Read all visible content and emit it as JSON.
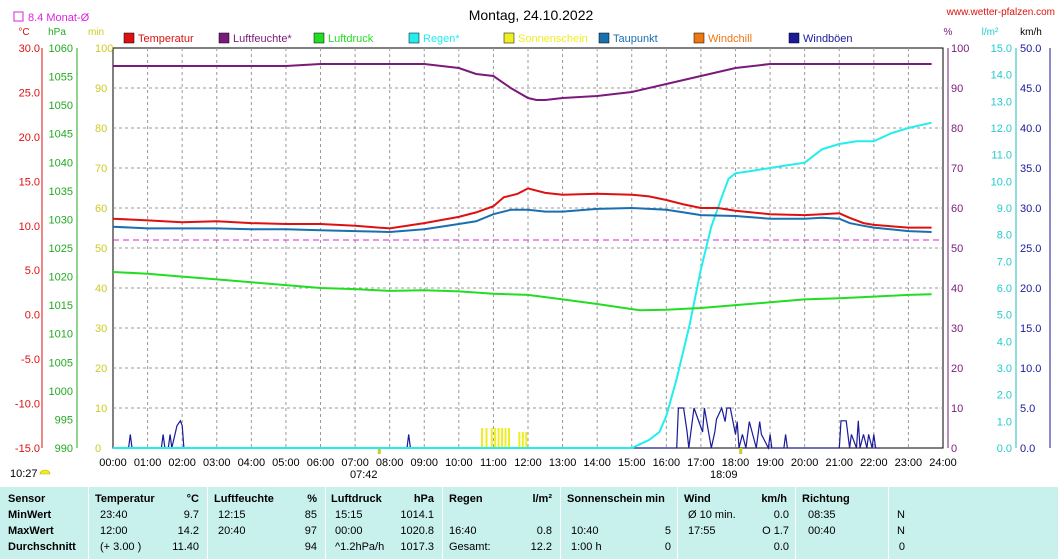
{
  "page": {
    "title": "Montag, 24.10.2022",
    "site": "www.wetter-pfalzen.com",
    "month_avg_label": "8.4 Monat-Ø",
    "time_start": "10:27",
    "time_sunrise": "07:42",
    "time_sunset": "18:09"
  },
  "colors": {
    "temperature": "#dd1111",
    "humidity": "#7a1a7a",
    "pressure": "#22dd22",
    "rain": "#22eeee",
    "sunshine": "#eeee22",
    "dewpoint": "#1a6fb0",
    "windchill": "#ee7711",
    "gusts": "#1a1a9a",
    "month_avg": "#dd22dd"
  },
  "chart_data": {
    "type": "line",
    "title": "Montag, 24.10.2022",
    "x_unit": "hours",
    "x_ticks": [
      "00:00",
      "01:00",
      "02:00",
      "03:00",
      "04:00",
      "05:00",
      "06:00",
      "07:00",
      "08:00",
      "09:00",
      "10:00",
      "11:00",
      "12:00",
      "13:00",
      "14:00",
      "15:00",
      "16:00",
      "17:00",
      "18:00",
      "19:00",
      "20:00",
      "21:00",
      "22:00",
      "23:00",
      "24:00"
    ],
    "axes": {
      "temperature": {
        "unit": "°C",
        "range": [
          -15,
          30
        ],
        "ticks": [
          "30.0",
          "25.0",
          "20.0",
          "15.0",
          "10.0",
          "5.0",
          "0.0",
          "-5.0",
          "-10.0",
          "-15.0"
        ]
      },
      "pressure": {
        "unit": "hPa",
        "range": [
          990,
          1060
        ],
        "ticks": [
          "1060",
          "1055",
          "1050",
          "1045",
          "1040",
          "1035",
          "1030",
          "1025",
          "1020",
          "1015",
          "1010",
          "1005",
          "1000",
          "995",
          "990"
        ]
      },
      "sunshine": {
        "unit": "min",
        "range": [
          0,
          100
        ],
        "ticks": [
          "100",
          "90",
          "80",
          "70",
          "60",
          "50",
          "40",
          "30",
          "20",
          "10",
          "0"
        ]
      },
      "humidity": {
        "unit": "%",
        "range": [
          0,
          100
        ],
        "ticks": [
          "100",
          "90",
          "80",
          "70",
          "60",
          "50",
          "40",
          "30",
          "20",
          "10",
          "0"
        ]
      },
      "rain": {
        "unit": "l/m²",
        "range": [
          0,
          15
        ],
        "ticks": [
          "15.0",
          "14.0",
          "13.0",
          "12.0",
          "11.0",
          "10.0",
          "9.0",
          "8.0",
          "7.0",
          "6.0",
          "5.0",
          "4.0",
          "3.0",
          "2.0",
          "1.0",
          "0.0"
        ]
      },
      "wind": {
        "unit": "km/h",
        "range": [
          0,
          50
        ],
        "ticks": [
          "50.0",
          "45.0",
          "40.0",
          "35.0",
          "30.0",
          "25.0",
          "20.0",
          "15.0",
          "10.0",
          "5.0",
          "0.0"
        ]
      }
    },
    "legend": [
      "Temperatur",
      "Luftfeuchte*",
      "Luftdruck",
      "Regen*",
      "Sonnenschein",
      "Taupunkt",
      "Windchill",
      "Windböen"
    ],
    "month_avg_temperature": 8.4,
    "series": [
      {
        "name": "Temperatur",
        "axis": "temperature",
        "x": [
          0,
          1,
          2,
          3,
          4,
          5,
          6,
          7,
          8,
          9,
          10,
          10.5,
          11,
          11.3,
          11.7,
          12,
          12.5,
          13,
          14,
          15,
          15.5,
          16,
          16.5,
          17,
          17.5,
          18,
          19,
          20,
          20.5,
          21,
          21.3,
          21.7,
          22,
          23,
          23.67
        ],
        "y": [
          10.8,
          10.6,
          10.4,
          10.5,
          10.3,
          10.2,
          10.2,
          10.0,
          9.7,
          10.3,
          11.0,
          11.5,
          12.2,
          13.2,
          13.6,
          14.2,
          13.7,
          13.5,
          13.6,
          13.5,
          13.3,
          12.9,
          12.4,
          12.0,
          12.0,
          11.7,
          11.3,
          11.2,
          11.3,
          11.4,
          10.9,
          10.3,
          10.1,
          9.8,
          9.8
        ]
      },
      {
        "name": "Luftfeuchte*",
        "axis": "humidity",
        "x": [
          0,
          1,
          2,
          3,
          4,
          5,
          6,
          7,
          8,
          9,
          10,
          10.5,
          11,
          11.5,
          12,
          12.25,
          12.5,
          13,
          14,
          15,
          16,
          17,
          18,
          19,
          20,
          21,
          22,
          23,
          23.67
        ],
        "y": [
          95.5,
          95.5,
          95.5,
          95.5,
          95.5,
          95.5,
          96,
          96,
          96,
          96,
          95,
          93.5,
          93,
          90,
          87.5,
          87,
          87,
          87.5,
          88,
          89,
          91,
          93,
          95,
          96,
          96,
          96,
          96,
          96,
          96
        ]
      },
      {
        "name": "Luftdruck",
        "axis": "pressure",
        "x": [
          0,
          1,
          2,
          3,
          4,
          5,
          6,
          7,
          8,
          9,
          10,
          11,
          12,
          13,
          14,
          15,
          15.25,
          16,
          17,
          18,
          19,
          20,
          21,
          22,
          23,
          23.67
        ],
        "y": [
          1020.8,
          1020.5,
          1020,
          1019.5,
          1019,
          1018.5,
          1018,
          1017.8,
          1017.5,
          1017.6,
          1017.4,
          1017,
          1016.8,
          1016,
          1015.2,
          1014.3,
          1014.1,
          1014.2,
          1014.5,
          1015,
          1015.5,
          1016,
          1016.2,
          1016.5,
          1016.8,
          1016.9
        ]
      },
      {
        "name": "Regen*",
        "axis": "rain",
        "x": [
          0,
          15,
          15.5,
          15.8,
          16,
          16.3,
          16.67,
          17,
          17.3,
          17.6,
          17.8,
          18,
          18.5,
          19,
          19.5,
          20,
          20.5,
          21,
          21.5,
          22,
          22.5,
          23,
          23.67
        ],
        "y": [
          0,
          0,
          0.3,
          0.6,
          1.2,
          2.6,
          4.6,
          6.7,
          8.3,
          9.4,
          10.1,
          10.3,
          10.4,
          10.5,
          10.6,
          10.7,
          11.2,
          11.4,
          11.5,
          11.5,
          11.8,
          12.0,
          12.2
        ]
      },
      {
        "name": "Taupunkt",
        "axis": "temperature",
        "x": [
          0,
          1,
          2,
          3,
          4,
          5,
          6,
          7,
          8,
          9,
          10,
          10.5,
          11,
          11.5,
          12,
          12.5,
          13,
          14,
          15,
          15.5,
          16,
          16.5,
          17,
          18,
          19,
          20,
          20.5,
          21,
          21.3,
          21.7,
          22,
          23,
          23.67
        ],
        "y": [
          9.9,
          9.7,
          9.7,
          9.7,
          9.6,
          9.6,
          9.5,
          9.4,
          9.3,
          9.6,
          10.2,
          10.5,
          11.3,
          11.8,
          11.8,
          11.6,
          11.6,
          11.9,
          12.0,
          11.9,
          11.8,
          11.5,
          11.2,
          11.1,
          10.8,
          10.8,
          10.9,
          10.8,
          10.3,
          10.0,
          9.8,
          9.4,
          9.3
        ]
      }
    ],
    "sunshine_bars": [
      {
        "x": 10.67,
        "y": 5
      },
      {
        "x": 10.8,
        "y": 5
      },
      {
        "x": 10.95,
        "y": 5
      },
      {
        "x": 11.05,
        "y": 5
      },
      {
        "x": 11.15,
        "y": 5
      },
      {
        "x": 11.25,
        "y": 5
      },
      {
        "x": 11.35,
        "y": 5
      },
      {
        "x": 11.45,
        "y": 5
      },
      {
        "x": 11.75,
        "y": 4
      },
      {
        "x": 11.85,
        "y": 4
      },
      {
        "x": 11.95,
        "y": 4
      }
    ],
    "gusts": {
      "x": [
        0,
        0.45,
        0.5,
        0.55,
        1.4,
        1.45,
        1.5,
        1.6,
        1.65,
        1.7,
        1.85,
        1.95,
        2.0,
        2.05,
        8.5,
        8.55,
        8.6,
        16.3,
        16.35,
        16.5,
        16.6,
        16.65,
        16.8,
        17.05,
        17.1,
        17.3,
        17.4,
        17.45,
        17.6,
        17.7,
        17.75,
        17.85,
        18.0,
        18.05,
        18.1,
        18.2,
        18.3,
        18.4,
        18.6,
        18.7,
        18.75,
        18.95,
        19.0,
        19.05,
        19.4,
        19.45,
        19.5,
        21.0,
        21.05,
        21.2,
        21.3,
        21.35,
        21.5,
        21.55,
        21.6,
        21.7,
        21.8,
        21.85,
        21.95,
        22.0,
        22.05,
        22.2
      ],
      "y": [
        0,
        0,
        1.7,
        0,
        0,
        1.7,
        0,
        0,
        1.7,
        0,
        2.8,
        3.4,
        2.8,
        0,
        0,
        1.7,
        0,
        0,
        5.0,
        5.0,
        2.0,
        0,
        5.0,
        2.0,
        5.0,
        0,
        2.0,
        3.6,
        5.0,
        3.3,
        5.0,
        5.0,
        1.7,
        3.3,
        0,
        1.7,
        0,
        3.3,
        0,
        3.3,
        1.7,
        0,
        1.7,
        0,
        0,
        1.7,
        0,
        0,
        3.4,
        3.4,
        0,
        1.7,
        0,
        3.4,
        0,
        1.7,
        0,
        1.7,
        0,
        1.7,
        0,
        0
      ]
    }
  },
  "stats": {
    "headers": {
      "sensor": "Sensor",
      "temp": "Temperatur",
      "temp_unit": "°C",
      "hum": "Luftfeuchte",
      "hum_unit": "%",
      "press": "Luftdruck",
      "press_unit": "hPa",
      "rain": "Regen",
      "rain_unit": "l/m²",
      "sun": "Sonnenschein min",
      "wind": "Wind",
      "wind_unit": "km/h",
      "dir": "Richtung"
    },
    "rows": [
      {
        "label": "MinWert",
        "temp_time": "23:40",
        "temp_val": "9.7",
        "hum_time": "12:15",
        "hum_val": "85",
        "press_time": "15:15",
        "press_val": "1014.1",
        "rain_time": "",
        "rain_val": "",
        "sun_time": "",
        "sun_val": "",
        "wind_time": "Ø 10 min.",
        "wind_val": "0.0",
        "dir_time": "08:35",
        "dir_val": "N"
      },
      {
        "label": "MaxWert",
        "temp_time": "12:00",
        "temp_val": "14.2",
        "hum_time": "20:40",
        "hum_val": "97",
        "press_time": "00:00",
        "press_val": "1020.8",
        "rain_time": "16:40",
        "rain_val": "0.8",
        "sun_time": "10:40",
        "sun_val": "5",
        "wind_time": "17:55",
        "wind_val": "O 1.7",
        "dir_time": "00:40",
        "dir_val": "N"
      },
      {
        "label": "Durchschnitt",
        "temp_time": "(+ 3.00 )",
        "temp_val": "11.40",
        "hum_time": "",
        "hum_val": "94",
        "press_time": "^1.2hPa/h",
        "press_val": "1017.3",
        "rain_time": "Gesamt:",
        "rain_val": "12.2",
        "sun_time": "1:00 h",
        "sun_val": "0",
        "wind_time": "",
        "wind_val": "0.0",
        "dir_time": "",
        "dir_val": "0"
      }
    ]
  }
}
